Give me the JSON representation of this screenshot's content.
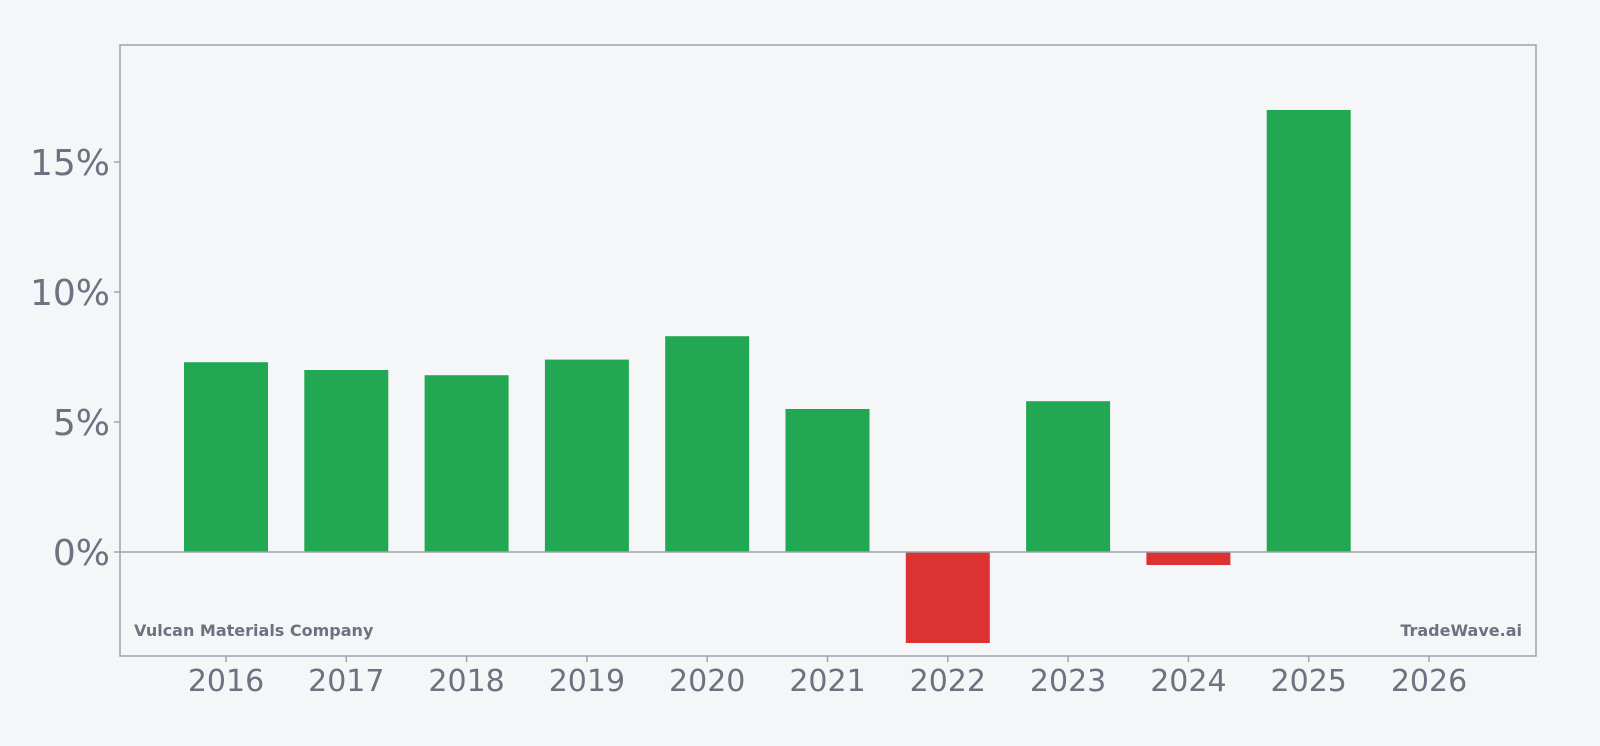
{
  "chart_data": {
    "type": "bar",
    "categories": [
      "2016",
      "2017",
      "2018",
      "2019",
      "2020",
      "2021",
      "2022",
      "2023",
      "2024",
      "2025",
      "2026"
    ],
    "values": [
      7.3,
      7.0,
      6.8,
      7.4,
      8.3,
      5.5,
      -3.5,
      5.8,
      -0.5,
      17.0,
      null
    ],
    "title": "",
    "xlabel": "",
    "ylabel": "",
    "ylim": [
      -4,
      19.5
    ],
    "yticks": [
      0,
      5,
      10,
      15
    ],
    "ytick_labels": [
      "0%",
      "5%",
      "10%",
      "15%"
    ],
    "grid": false,
    "colors": {
      "positive": "#22a852",
      "negative": "#dc3232",
      "axis": "#9ca3af",
      "text": "#6b7280",
      "background": "#f5f6f8"
    }
  },
  "watermark": {
    "left": "Vulcan Materials Company",
    "right": "TradeWave.ai"
  }
}
